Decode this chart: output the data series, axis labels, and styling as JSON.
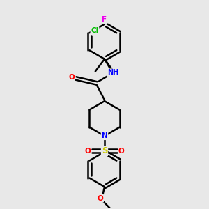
{
  "bg_color": "#e8e8e8",
  "bond_color": "#000000",
  "bond_width": 1.8,
  "atom_colors": {
    "F": "#ee00ee",
    "Cl": "#00bb00",
    "O": "#ff0000",
    "N": "#0000ff",
    "S": "#cccc00",
    "H": "#008888",
    "C": "#000000"
  },
  "figsize": [
    3.0,
    3.0
  ],
  "dpi": 100
}
